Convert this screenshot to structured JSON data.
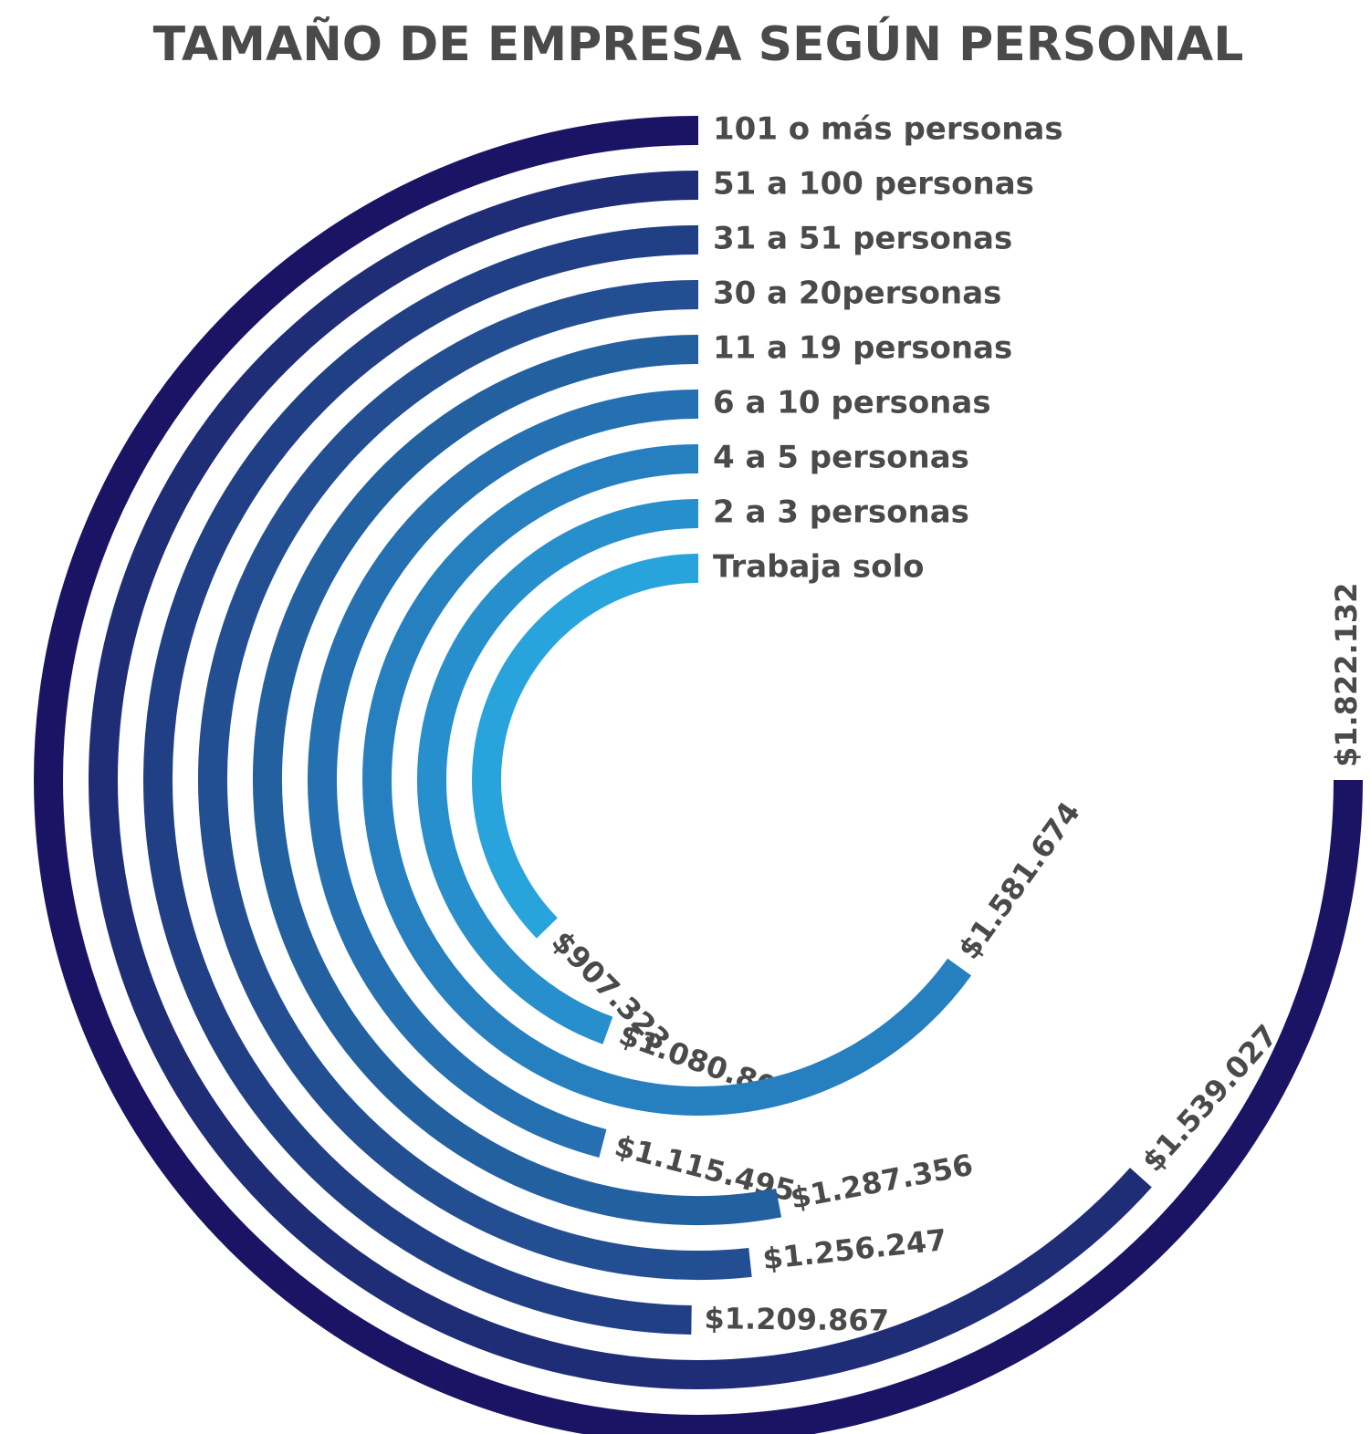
{
  "chart_data": {
    "type": "radial_bar",
    "title": "TAMAÑO DE EMPRESA SEGÚN PERSONAL",
    "categories": [
      "Trabaja solo",
      "2 a 3 personas",
      "4 a 5 personas",
      "6 a 10 personas",
      "11 a 19 personas",
      "30 a 20personas",
      "31 a 51 personas",
      "51 a 100 personas",
      "101 o más personas"
    ],
    "values": [
      907323,
      1080803,
      1581674,
      1115495,
      1287356,
      1256247,
      1209867,
      1539027,
      1822132
    ],
    "value_labels": [
      "$907.323",
      "$1.080.803",
      "$1.581.674",
      "$1.115.495",
      "$1.287.356",
      "$1.256.247",
      "$1.209.867",
      "$1.539.027",
      "$1.822.132"
    ],
    "colors": [
      "#29a3dc",
      "#278fcb",
      "#2680bf",
      "#2570b0",
      "#2360a0",
      "#234f92",
      "#213f85",
      "#1f2d76",
      "#1b1464"
    ]
  }
}
